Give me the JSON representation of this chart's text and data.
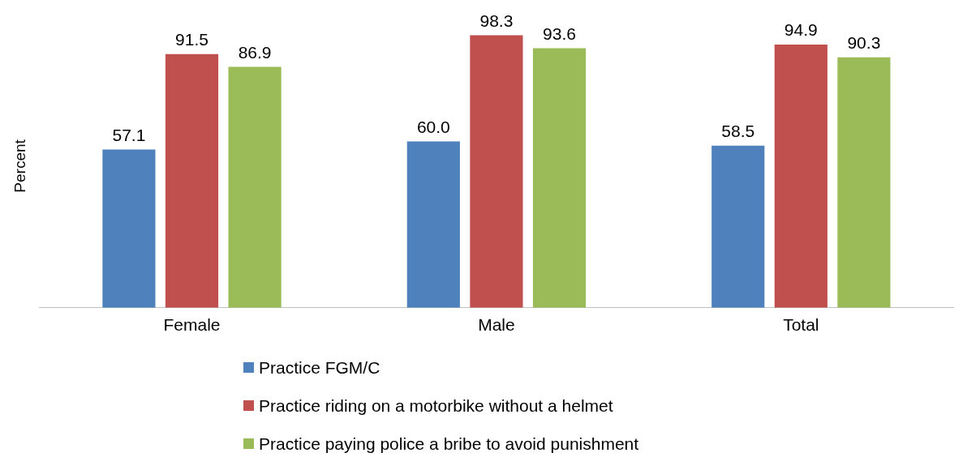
{
  "chart_data": {
    "type": "bar",
    "ylabel": "Percent",
    "categories": [
      "Female",
      "Male",
      "Total"
    ],
    "series": [
      {
        "name": "Practice FGM/C",
        "color": "#4f81bd",
        "values": [
          57.1,
          60.0,
          58.5
        ],
        "value_labels": [
          "57.1",
          "60.0",
          "58.5"
        ]
      },
      {
        "name": "Practice riding on a motorbike without a helmet",
        "color": "#c0504d",
        "values": [
          91.5,
          98.3,
          94.9
        ],
        "value_labels": [
          "91.5",
          "98.3",
          "94.9"
        ]
      },
      {
        "name": "Practice paying police a bribe to avoid punishment",
        "color": "#9bbb59",
        "values": [
          86.9,
          93.6,
          90.3
        ],
        "value_labels": [
          "86.9",
          "93.6",
          "90.3"
        ]
      }
    ],
    "relative": false,
    "grid": false,
    "legend": "bottom",
    "tick_labels": "x"
  }
}
